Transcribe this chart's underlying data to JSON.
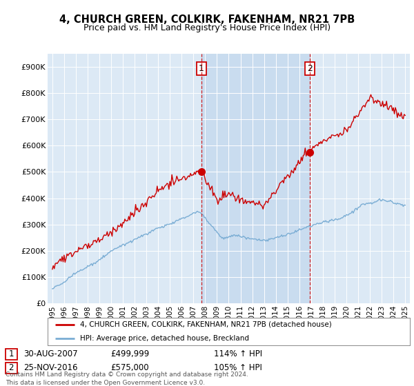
{
  "title": "4, CHURCH GREEN, COLKIRK, FAKENHAM, NR21 7PB",
  "subtitle": "Price paid vs. HM Land Registry's House Price Index (HPI)",
  "background_color": "#dce9f5",
  "fig_bg_color": "#ffffff",
  "red_line_color": "#cc0000",
  "blue_line_color": "#7aadd4",
  "shade_color": "#c5d9ee",
  "sale1_date": "30-AUG-2007",
  "sale1_price": 499999,
  "sale1_pct": "114% ↑ HPI",
  "sale2_date": "25-NOV-2016",
  "sale2_price": 575000,
  "sale2_pct": "105% ↑ HPI",
  "legend_line1": "4, CHURCH GREEN, COLKIRK, FAKENHAM, NR21 7PB (detached house)",
  "legend_line2": "HPI: Average price, detached house, Breckland",
  "footnote": "Contains HM Land Registry data © Crown copyright and database right 2024.\nThis data is licensed under the Open Government Licence v3.0.",
  "ylim": [
    0,
    950000
  ],
  "yticks": [
    0,
    100000,
    200000,
    300000,
    400000,
    500000,
    600000,
    700000,
    800000,
    900000
  ],
  "ytick_labels": [
    "£0",
    "£100K",
    "£200K",
    "£300K",
    "£400K",
    "£500K",
    "£600K",
    "£700K",
    "£800K",
    "£900K"
  ],
  "sale1_x": 2007.67,
  "sale2_x": 2016.9
}
